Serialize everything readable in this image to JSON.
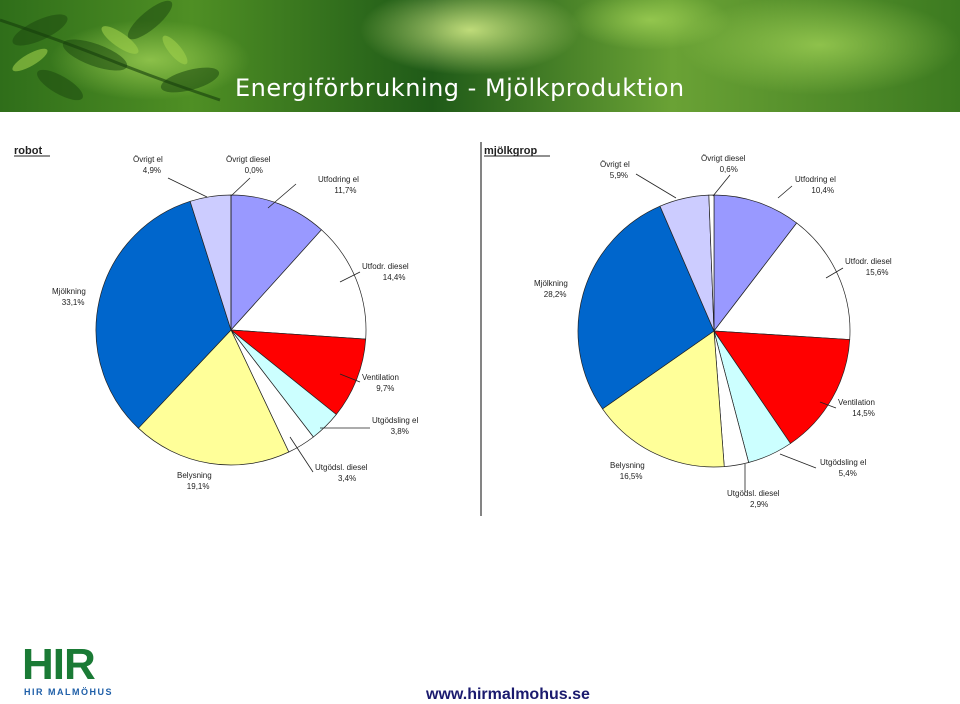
{
  "slide_title": "Energiförbrukning - Mjölkproduktion",
  "footer_url": "www.hirmalmohus.se",
  "logo": {
    "letters": "HIR",
    "subtitle": "HIR MALMÖHUS"
  },
  "colors": {
    "utfodring_el": "#9999ff",
    "utfodr_diesel": "#ffffff",
    "ventilation": "#ff0000",
    "utgodsling_el": "#ccffff",
    "utgodsl_diesel": "#ffffff",
    "belysning": "#ffff99",
    "mjolkning": "#0066cc",
    "ovrigt_el": "#ccccff",
    "ovrigt_diesel": "#ffffff"
  },
  "chart_data": [
    {
      "type": "pie",
      "title": "robot",
      "slices": [
        {
          "name": "Utfodring el",
          "value": 11.7,
          "label": "11,7%"
        },
        {
          "name": "Utfodr. diesel",
          "value": 14.4,
          "label": "14,4%"
        },
        {
          "name": "Ventilation",
          "value": 9.7,
          "label": "9,7%"
        },
        {
          "name": "Utgödsling el",
          "value": 3.8,
          "label": "3,8%"
        },
        {
          "name": "Utgödsl. diesel",
          "value": 3.4,
          "label": "3,4%"
        },
        {
          "name": "Belysning",
          "value": 19.1,
          "label": "19,1%"
        },
        {
          "name": "Mjölkning",
          "value": 33.1,
          "label": "33,1%"
        },
        {
          "name": "Övrigt el",
          "value": 4.9,
          "label": "4,9%"
        },
        {
          "name": "Övrigt diesel",
          "value": 0.0,
          "label": "0,0%"
        }
      ]
    },
    {
      "type": "pie",
      "title": "mjölkgrop",
      "slices": [
        {
          "name": "Utfodring el",
          "value": 10.4,
          "label": "10,4%"
        },
        {
          "name": "Utfodr. diesel",
          "value": 15.6,
          "label": "15,6%"
        },
        {
          "name": "Ventilation",
          "value": 14.5,
          "label": "14,5%"
        },
        {
          "name": "Utgödsling el",
          "value": 5.4,
          "label": "5,4%"
        },
        {
          "name": "Utgödsl. diesel",
          "value": 2.9,
          "label": "2,9%"
        },
        {
          "name": "Belysning",
          "value": 16.5,
          "label": "16,5%"
        },
        {
          "name": "Mjölkning",
          "value": 28.2,
          "label": "28,2%"
        },
        {
          "name": "Övrigt el",
          "value": 5.9,
          "label": "5,9%"
        },
        {
          "name": "Övrigt diesel",
          "value": 0.6,
          "label": "0,6%"
        }
      ]
    }
  ]
}
